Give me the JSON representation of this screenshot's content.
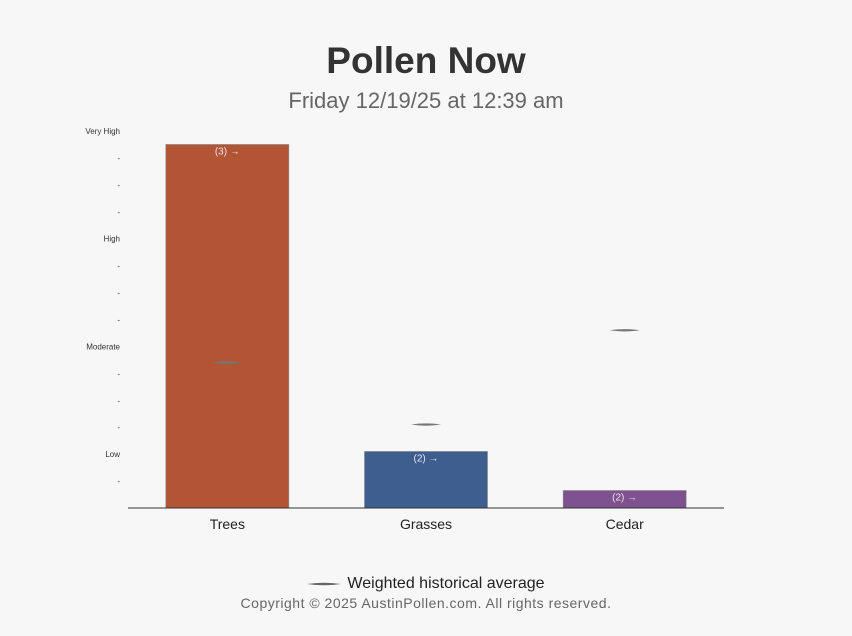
{
  "header": {
    "title": "Pollen Now",
    "subtitle": "Friday 12/19/25 at 12:39 am"
  },
  "legend": {
    "label": "Weighted historical average"
  },
  "footer": {
    "copyright": "Copyright © 2025 AustinPollen.com.  All rights reserved."
  },
  "chart_data": {
    "type": "bar",
    "categories": [
      "Trees",
      "Grasses",
      "Cedar"
    ],
    "values": [
      13.5,
      2.1,
      0.65
    ],
    "historical_average": [
      5.4,
      3.1,
      6.6
    ],
    "bar_labels": [
      "(3) →",
      "(2) →",
      "(2) →"
    ],
    "colors": [
      "#b25535",
      "#3d5e8e",
      "#7e5290"
    ],
    "ylim": [
      0,
      14
    ],
    "yticks": [
      {
        "value": 1,
        "label": "-"
      },
      {
        "value": 2,
        "label": "Low"
      },
      {
        "value": 3,
        "label": "-"
      },
      {
        "value": 4,
        "label": "-"
      },
      {
        "value": 5,
        "label": "-"
      },
      {
        "value": 6,
        "label": "Moderate"
      },
      {
        "value": 7,
        "label": "-"
      },
      {
        "value": 8,
        "label": "-"
      },
      {
        "value": 9,
        "label": "-"
      },
      {
        "value": 10,
        "label": "High"
      },
      {
        "value": 11,
        "label": "-"
      },
      {
        "value": 12,
        "label": "-"
      },
      {
        "value": 13,
        "label": "-"
      },
      {
        "value": 14,
        "label": "Very High"
      }
    ],
    "grid": false,
    "legend_position": "bottom"
  }
}
